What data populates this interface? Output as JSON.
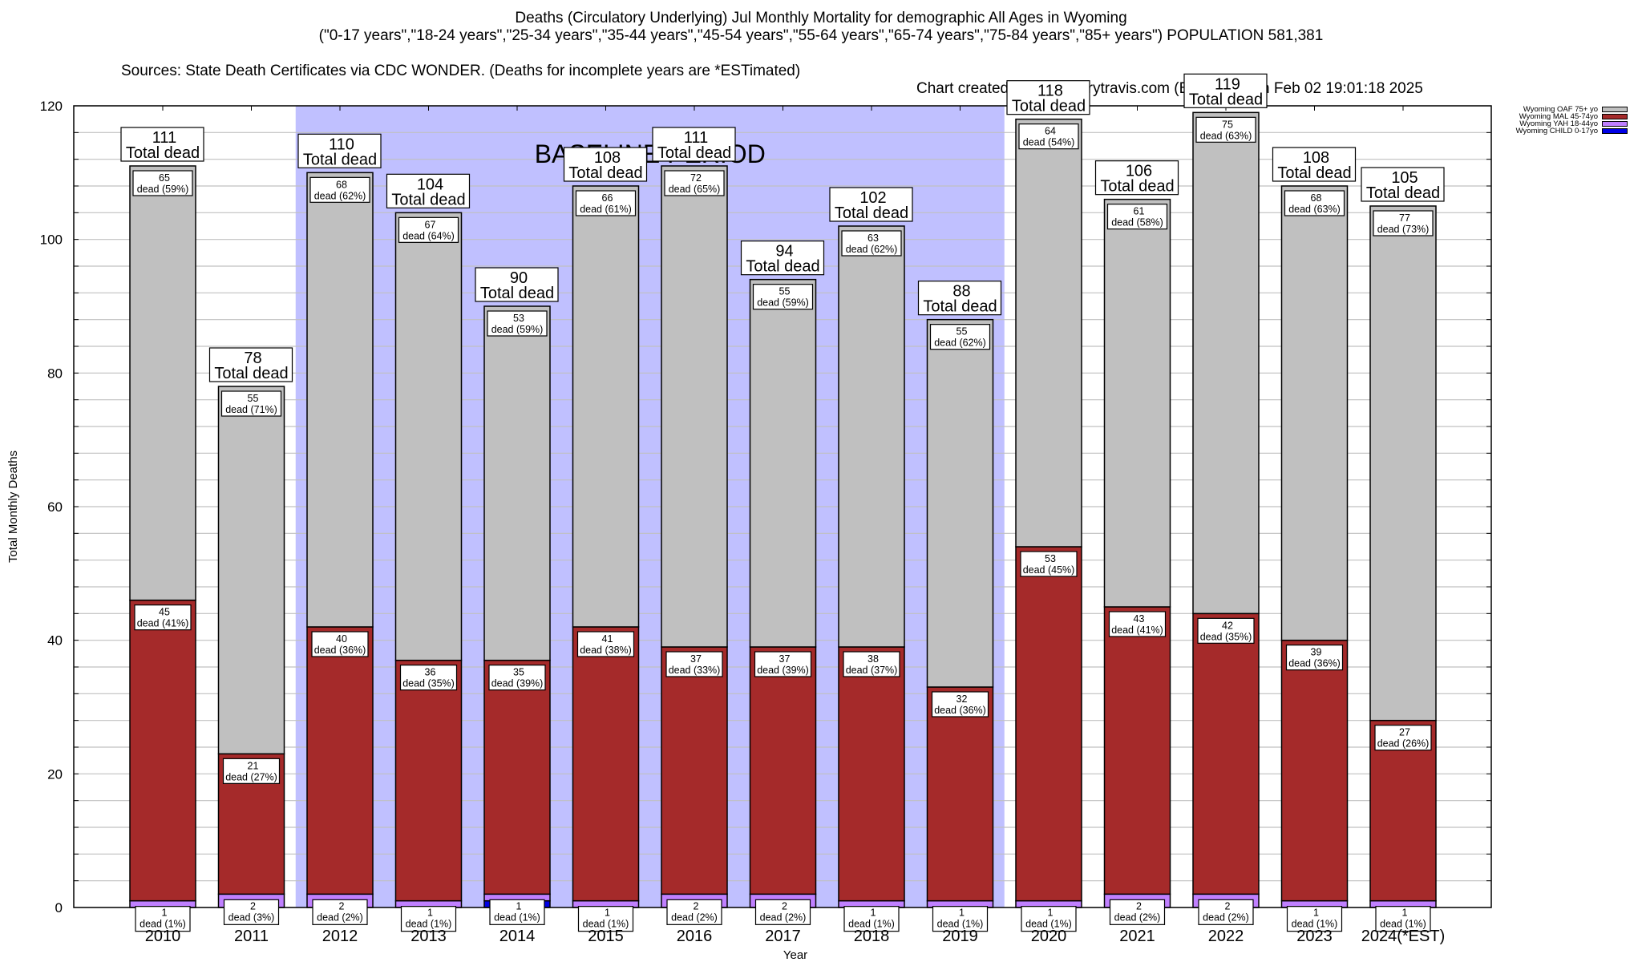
{
  "chart_data": {
    "type": "bar",
    "stacked": true,
    "title": "Deaths (Circulatory Underlying) Jul Monthly Mortality for demographic All Ages in Wyoming",
    "subtitle": "(\"0-17 years\",\"18-24 years\",\"25-34 years\",\"35-44 years\",\"45-54 years\",\"55-64 years\",\"65-74 years\",\"75-84 years\",\"85+ years\") POPULATION 581,381",
    "sources": "Sources: State Death Certificates via CDC WONDER. (Deaths for incomplete years are *ESTimated)",
    "credit": "Chart created by @gregorytravis.com (Bsky) on Sun Feb 02 19:01:18 2025",
    "xlabel": "Year",
    "ylabel": "Total Monthly Deaths",
    "ylim": [
      0,
      120
    ],
    "yticks": [
      0,
      20,
      40,
      60,
      80,
      100,
      120
    ],
    "minor_grid_step": 4,
    "grid": true,
    "categories": [
      "2010",
      "2011",
      "2012",
      "2013",
      "2014",
      "2015",
      "2016",
      "2017",
      "2018",
      "2019",
      "2020",
      "2021",
      "2022",
      "2023",
      "2024(*EST)"
    ],
    "series": [
      {
        "name": "Wyoming CHILD 0-17yo",
        "color": "#0000e6",
        "values": [
          0,
          0,
          0,
          0,
          1,
          0,
          0,
          0,
          0,
          0,
          0,
          0,
          0,
          0,
          0
        ]
      },
      {
        "name": "Wyoming YAH 18-44yo",
        "color": "#c080ff",
        "values": [
          1,
          2,
          2,
          1,
          1,
          1,
          2,
          2,
          1,
          1,
          1,
          2,
          2,
          1,
          1
        ],
        "labels_pct": [
          1,
          3,
          2,
          1,
          1,
          1,
          2,
          2,
          1,
          1,
          1,
          2,
          2,
          1,
          1
        ]
      },
      {
        "name": "Wyoming MAL 45-74yo",
        "color": "#a52a2a",
        "values": [
          45,
          21,
          40,
          36,
          35,
          41,
          37,
          37,
          38,
          32,
          53,
          43,
          42,
          39,
          27
        ],
        "labels_pct": [
          41,
          27,
          36,
          35,
          39,
          38,
          33,
          39,
          37,
          36,
          45,
          41,
          35,
          36,
          26
        ]
      },
      {
        "name": "Wyoming OAF 75+ yo",
        "color": "#c0c0c0",
        "values": [
          65,
          55,
          68,
          67,
          53,
          66,
          72,
          55,
          63,
          55,
          64,
          61,
          75,
          68,
          77
        ],
        "labels_pct": [
          59,
          71,
          62,
          64,
          59,
          61,
          65,
          59,
          62,
          62,
          54,
          58,
          63,
          63,
          73
        ]
      }
    ],
    "totals": [
      111,
      78,
      110,
      104,
      90,
      108,
      111,
      94,
      102,
      88,
      118,
      106,
      119,
      108,
      105
    ],
    "total_label_suffix": "Total dead",
    "segment_label_word": "dead",
    "annotation": {
      "text": "BASELINE PERIOD",
      "shaded_from": "2012",
      "shaded_to": "2019",
      "shade_color": "#c0c0ff"
    },
    "legend": {
      "position": "top-right",
      "order": [
        "Wyoming OAF 75+ yo",
        "Wyoming MAL 45-74yo",
        "Wyoming YAH 18-44yo",
        "Wyoming CHILD 0-17yo"
      ]
    }
  }
}
